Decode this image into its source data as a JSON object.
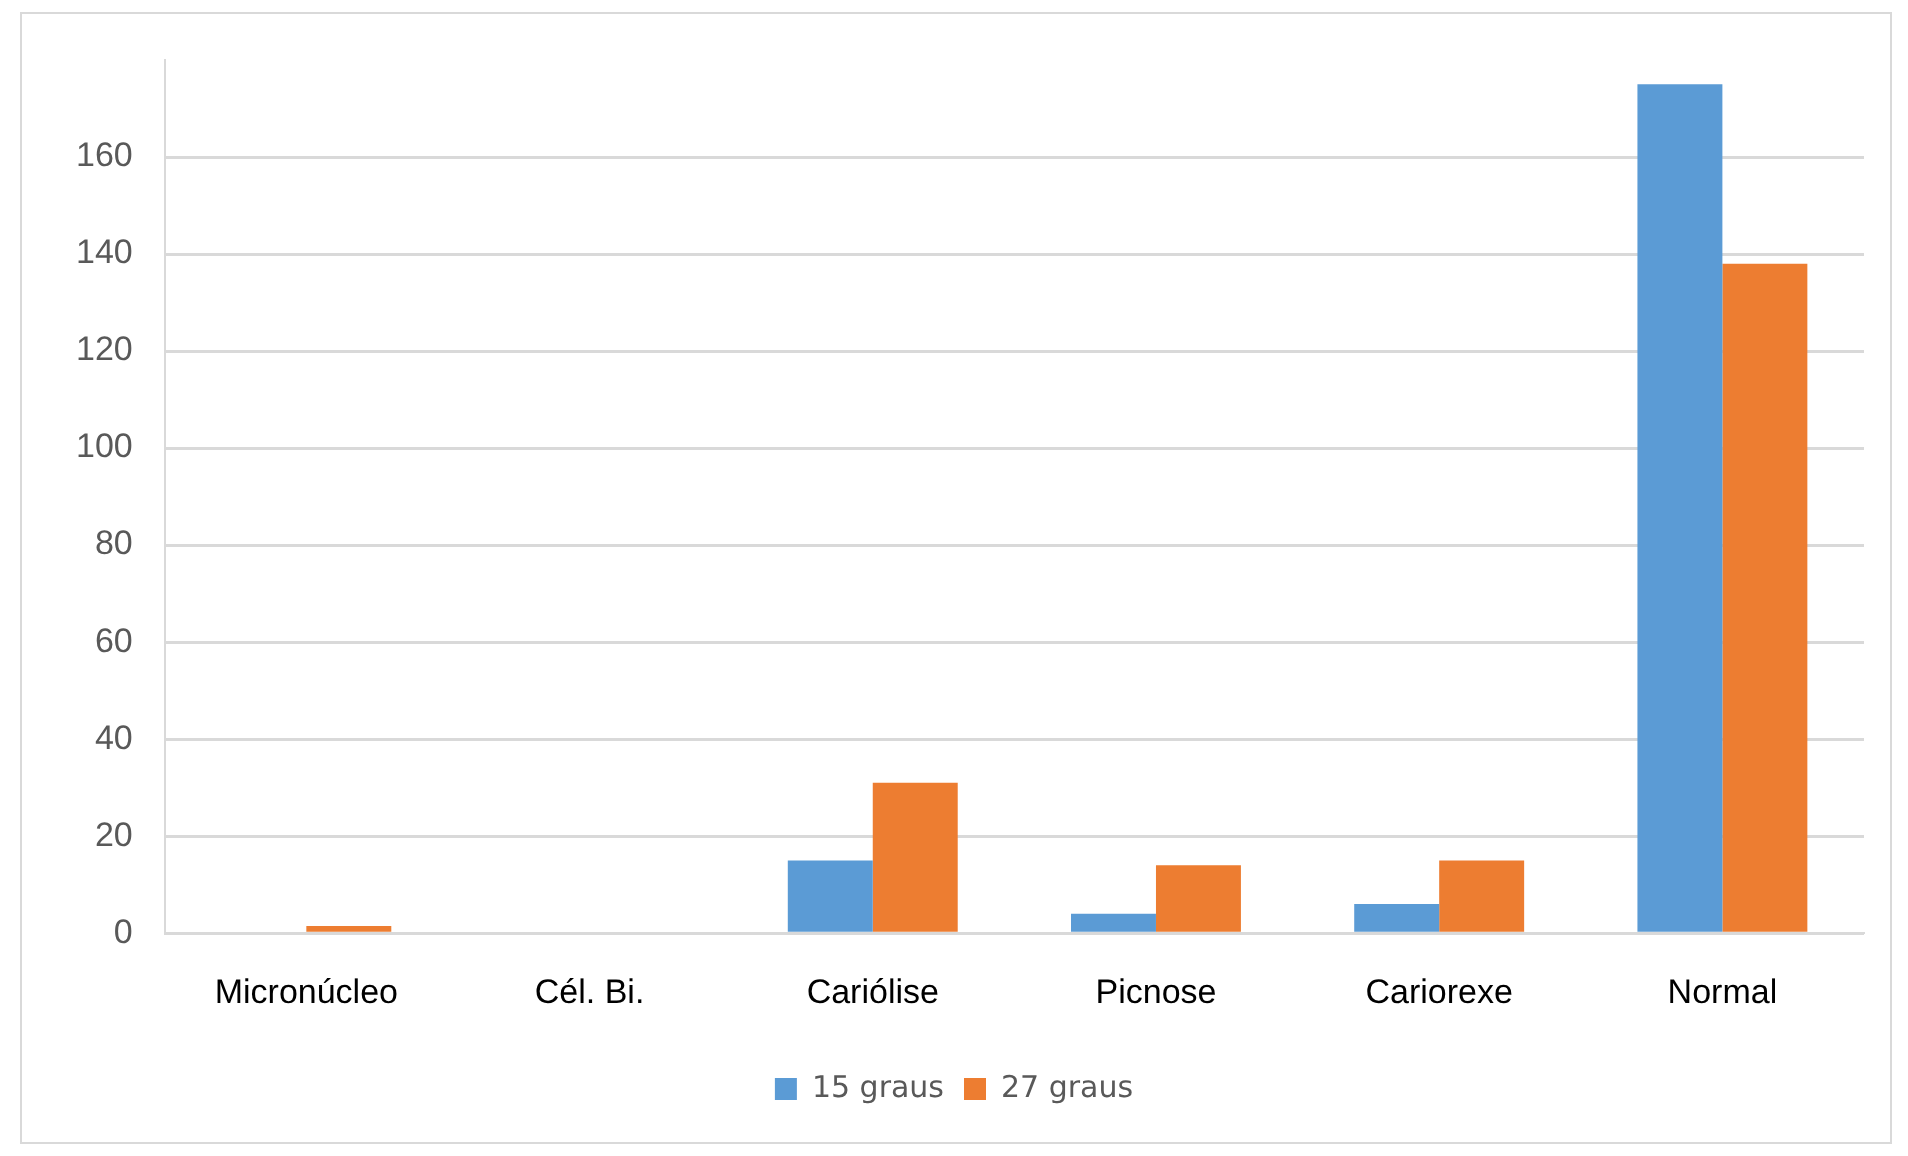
{
  "chart_data": {
    "type": "bar",
    "categories": [
      "Micronúcleo",
      "Cél. Bi.",
      "Cariólise",
      "Picnose",
      "Cariorexe",
      "Normal"
    ],
    "series": [
      {
        "name": "15 graus",
        "color": "#5b9bd5",
        "values": [
          0,
          0,
          15,
          4,
          6,
          175
        ]
      },
      {
        "name": "27 graus",
        "color": "#ed7d31",
        "values": [
          1.5,
          0,
          31,
          14,
          15,
          138
        ]
      }
    ],
    "ylim": [
      0,
      180
    ],
    "yticks": [
      0,
      20,
      40,
      60,
      80,
      100,
      120,
      140,
      160
    ],
    "grid": "y",
    "legend": "bottom"
  }
}
